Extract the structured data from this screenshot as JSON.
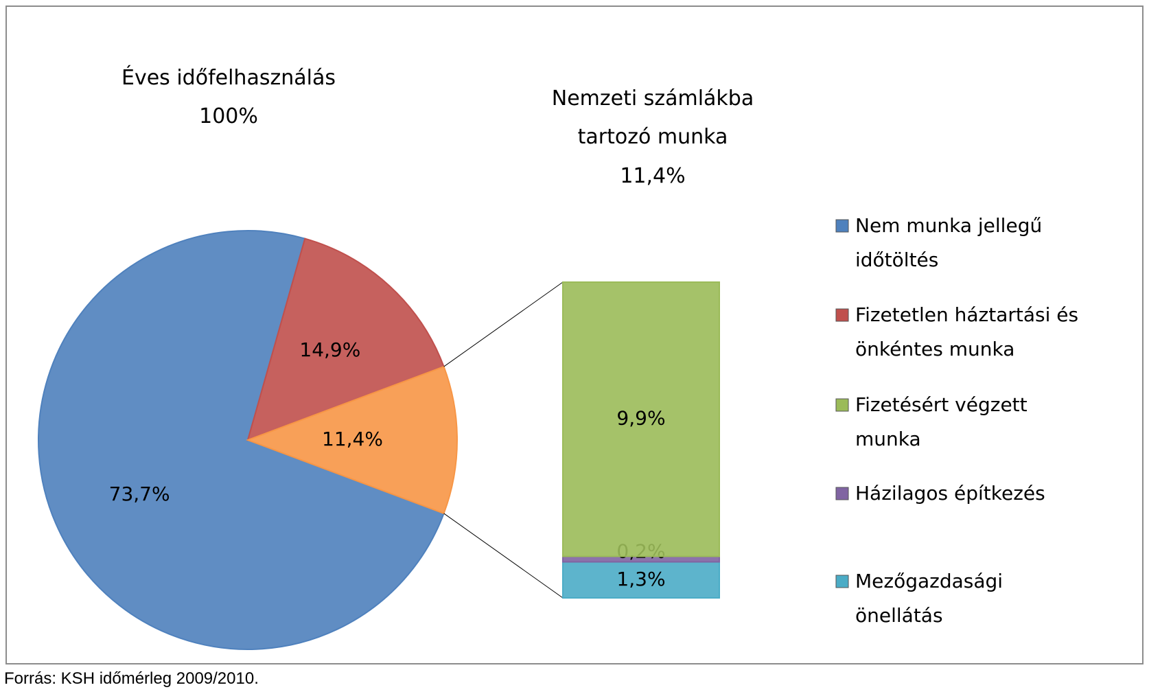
{
  "chart_data": [
    {
      "type": "pie",
      "title": "Éves időfelhasználás",
      "total": 100,
      "total_label": "100%",
      "categories": [
        "Nem munka jellegű időtöltés",
        "Fizetetlen háztartási és önkéntes munka",
        null
      ],
      "values": [
        73.7,
        14.9,
        11.4
      ],
      "value_labels": [
        "73,7%",
        "14,9%",
        "11,4%"
      ],
      "colors": [
        "#4f81bd",
        "#c0504d",
        "#f79646"
      ]
    },
    {
      "type": "bar",
      "title": "Nemzeti számlákba tartozó munka",
      "total": 11.4,
      "total_label": "11,4%",
      "categories": [
        "Fizetésért végzett munka",
        "Házilagos építkezés",
        "Mezőgazdasági önellátás"
      ],
      "values": [
        9.9,
        0.2,
        1.3
      ],
      "value_labels": [
        "9,9%",
        "0,2%",
        "1,3%"
      ],
      "colors": [
        "#9bbb59",
        "#8064a2",
        "#4bacc6"
      ]
    }
  ],
  "source": "Forrás: KSH időmérleg 2009/2010."
}
